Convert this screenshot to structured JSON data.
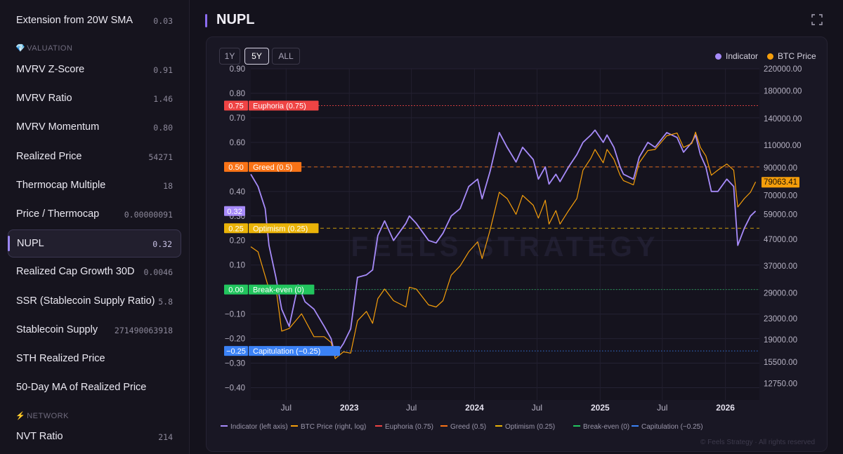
{
  "sidebar": {
    "items_top": [
      {
        "label": "Extension from 20W SMA",
        "value": "0.03"
      }
    ],
    "section_valuation": {
      "glyph": "💎",
      "label": "VALUATION"
    },
    "items_valuation": [
      {
        "label": "MVRV Z-Score",
        "value": "0.91"
      },
      {
        "label": "MVRV Ratio",
        "value": "1.46"
      },
      {
        "label": "MVRV Momentum",
        "value": "0.80"
      },
      {
        "label": "Realized Price",
        "value": "54271"
      },
      {
        "label": "Thermocap Multiple",
        "value": "18"
      },
      {
        "label": "Price / Thermocap",
        "value": "0.00000091"
      },
      {
        "label": "NUPL",
        "value": "0.32"
      },
      {
        "label": "Realized Cap Growth 30D",
        "value": "0.0046"
      },
      {
        "label": "SSR (Stablecoin Supply Ratio)",
        "value": "5.8"
      },
      {
        "label": "Stablecoin Supply",
        "value": "271490063918"
      },
      {
        "label": "STH Realized Price",
        "value": ""
      },
      {
        "label": "50-Day MA of Realized Price",
        "value": ""
      }
    ],
    "section_network": {
      "glyph": "⚡",
      "label": "NETWORK"
    },
    "items_network": [
      {
        "label": "NVT Ratio",
        "value": "214"
      }
    ]
  },
  "header": {
    "title": "NUPL"
  },
  "range_buttons": [
    "1Y",
    "5Y",
    "ALL"
  ],
  "active_range": "5Y",
  "colors": {
    "indicator": "#a78bfa",
    "btc": "#f59e0b",
    "euphoria": "#ef4444",
    "greed": "#f97316",
    "optimism": "#eab308",
    "breakeven": "#22c55e",
    "capitulation": "#3b82f6"
  },
  "chart_data": {
    "type": "line",
    "legend_top": [
      "Indicator",
      "BTC Price"
    ],
    "left_axis": {
      "ticks": [
        "0.90",
        "0.80",
        "0.70",
        "0.60",
        "0.50",
        "0.40",
        "0.30",
        "0.20",
        "0.10",
        "0.00",
        "−0.10",
        "−0.20",
        "−0.30",
        "−0.40"
      ],
      "range": [
        -0.45,
        0.9
      ]
    },
    "right_axis": {
      "scale": "log",
      "ticks": [
        "220000.00",
        "180000.00",
        "140000.00",
        "110000.00",
        "90000.00",
        "70000.00",
        "59000.00",
        "47000.00",
        "37000.00",
        "29000.00",
        "23000.00",
        "19000.00",
        "15500.00",
        "12750.00"
      ],
      "range": [
        11000,
        220000
      ]
    },
    "x_ticks": [
      "Jul",
      "2023",
      "Jul",
      "2024",
      "Jul",
      "2025",
      "Jul",
      "2026"
    ],
    "x_range": [
      "2022-03-20",
      "2026-04-10"
    ],
    "current_indicator_label": "0.32",
    "current_btc_label": "79063.41",
    "zones": [
      {
        "key": "euphoria",
        "value": 0.75,
        "tag": "0.75",
        "label": "Euphoria (0.75)",
        "legend": "Euphoria (0.75)"
      },
      {
        "key": "greed",
        "value": 0.5,
        "tag": "0.50",
        "label": "Greed (0.5)",
        "legend": "Greed (0.5)"
      },
      {
        "key": "optimism",
        "value": 0.25,
        "tag": "0.25",
        "label": "Optimism (0.25)",
        "legend": "Optimism (0.25)"
      },
      {
        "key": "breakeven",
        "value": 0,
        "tag": "0.00",
        "label": "Break-even (0)",
        "legend": "Break-even (0)"
      },
      {
        "key": "capitulation",
        "value": -0.25,
        "tag": "−0.25",
        "label": "Capitulation (−0.25)",
        "legend": "Capitulation (−0.25)"
      }
    ],
    "bottom_legend_indicator": "Indicator (left axis)",
    "bottom_legend_btc": "BTC Price (right, log)",
    "series": [
      {
        "name": "Indicator",
        "axis": "left",
        "x": [
          "2022-03-20",
          "2022-04-10",
          "2022-05-01",
          "2022-05-12",
          "2022-06-01",
          "2022-06-18",
          "2022-07-10",
          "2022-08-05",
          "2022-08-25",
          "2022-09-20",
          "2022-10-20",
          "2022-11-09",
          "2022-11-21",
          "2022-12-15",
          "2023-01-05",
          "2023-01-25",
          "2023-02-20",
          "2023-03-10",
          "2023-03-25",
          "2023-04-14",
          "2023-05-10",
          "2023-06-15",
          "2023-06-25",
          "2023-07-15",
          "2023-08-20",
          "2023-09-11",
          "2023-10-01",
          "2023-10-25",
          "2023-11-20",
          "2023-12-15",
          "2024-01-10",
          "2024-01-23",
          "2024-02-15",
          "2024-03-13",
          "2024-04-05",
          "2024-05-01",
          "2024-05-20",
          "2024-06-20",
          "2024-07-05",
          "2024-07-25",
          "2024-08-05",
          "2024-08-25",
          "2024-09-06",
          "2024-10-01",
          "2024-10-25",
          "2024-11-12",
          "2024-12-05",
          "2024-12-17",
          "2025-01-10",
          "2025-01-21",
          "2025-02-10",
          "2025-02-28",
          "2025-03-10",
          "2025-04-08",
          "2025-04-25",
          "2025-05-20",
          "2025-06-10",
          "2025-07-14",
          "2025-08-13",
          "2025-09-01",
          "2025-09-25",
          "2025-10-06",
          "2025-10-20",
          "2025-11-05",
          "2025-11-21",
          "2025-12-10",
          "2026-01-05",
          "2026-01-25",
          "2026-02-06",
          "2026-02-25",
          "2026-03-15",
          "2026-03-30"
        ],
        "values": [
          0.47,
          0.42,
          0.33,
          0.18,
          0.05,
          -0.08,
          -0.15,
          0.02,
          -0.05,
          -0.08,
          -0.15,
          -0.2,
          -0.27,
          -0.22,
          -0.16,
          0.05,
          0.06,
          0.08,
          0.22,
          0.28,
          0.2,
          0.27,
          0.3,
          0.27,
          0.2,
          0.19,
          0.23,
          0.3,
          0.33,
          0.42,
          0.45,
          0.37,
          0.48,
          0.64,
          0.58,
          0.52,
          0.58,
          0.53,
          0.45,
          0.5,
          0.43,
          0.47,
          0.44,
          0.5,
          0.55,
          0.6,
          0.63,
          0.65,
          0.6,
          0.63,
          0.58,
          0.5,
          0.47,
          0.45,
          0.54,
          0.6,
          0.58,
          0.64,
          0.62,
          0.56,
          0.6,
          0.63,
          0.55,
          0.5,
          0.4,
          0.4,
          0.45,
          0.42,
          0.18,
          0.25,
          0.3,
          0.32
        ]
      },
      {
        "name": "BTC Price",
        "axis": "right",
        "scale": "log",
        "x": [
          "2022-03-20",
          "2022-04-10",
          "2022-05-12",
          "2022-06-01",
          "2022-06-18",
          "2022-07-10",
          "2022-08-15",
          "2022-09-20",
          "2022-10-20",
          "2022-11-09",
          "2022-11-21",
          "2022-12-15",
          "2023-01-05",
          "2023-01-25",
          "2023-02-20",
          "2023-03-10",
          "2023-03-25",
          "2023-04-14",
          "2023-05-10",
          "2023-06-15",
          "2023-06-25",
          "2023-07-15",
          "2023-08-20",
          "2023-09-11",
          "2023-10-01",
          "2023-10-25",
          "2023-11-20",
          "2023-12-15",
          "2024-01-10",
          "2024-01-23",
          "2024-02-15",
          "2024-03-13",
          "2024-04-05",
          "2024-05-01",
          "2024-05-20",
          "2024-06-20",
          "2024-07-05",
          "2024-07-25",
          "2024-08-05",
          "2024-08-25",
          "2024-09-06",
          "2024-10-01",
          "2024-10-25",
          "2024-11-12",
          "2024-12-05",
          "2024-12-17",
          "2025-01-10",
          "2025-01-21",
          "2025-02-10",
          "2025-02-28",
          "2025-03-10",
          "2025-04-08",
          "2025-04-25",
          "2025-05-20",
          "2025-06-10",
          "2025-07-14",
          "2025-08-13",
          "2025-09-01",
          "2025-09-25",
          "2025-10-06",
          "2025-10-20",
          "2025-11-05",
          "2025-11-21",
          "2025-12-10",
          "2026-01-05",
          "2026-01-25",
          "2026-02-06",
          "2026-02-25",
          "2026-03-15",
          "2026-03-30"
        ],
        "values": [
          44000,
          42000,
          30000,
          30500,
          20500,
          21000,
          24000,
          19500,
          19500,
          18500,
          16000,
          17000,
          16800,
          22500,
          24500,
          22000,
          27500,
          30000,
          27000,
          25500,
          30500,
          30000,
          26000,
          25500,
          27000,
          34000,
          37000,
          42000,
          46000,
          39500,
          51000,
          72000,
          68000,
          59000,
          70000,
          64000,
          57000,
          67000,
          54000,
          61000,
          54000,
          61000,
          68000,
          88000,
          98000,
          106000,
          94000,
          106000,
          97000,
          84000,
          80000,
          77000,
          94000,
          105000,
          106000,
          120000,
          123000,
          108000,
          112000,
          124000,
          108000,
          100000,
          84000,
          88000,
          93000,
          88000,
          63000,
          68000,
          72000,
          79063
        ]
      }
    ]
  },
  "watermark": "FEELS STRATEGY",
  "footer_credit": "© Feels Strategy · All rights reserved"
}
